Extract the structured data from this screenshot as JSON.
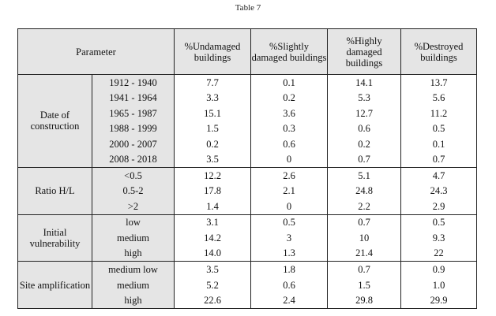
{
  "caption": "Table 7",
  "header": {
    "parameter": "Parameter",
    "columns": [
      "%Undamaged buildings",
      "%Slightly damaged buildings",
      "%Highly damaged buildings",
      "%Destroyed buildings"
    ]
  },
  "groups": [
    {
      "label": "Date of construction",
      "rows": [
        {
          "sub": "1912 - 1940",
          "v": [
            "7.7",
            "0.1",
            "14.1",
            "13.7"
          ]
        },
        {
          "sub": "1941 - 1964",
          "v": [
            "3.3",
            "0.2",
            "5.3",
            "5.6"
          ]
        },
        {
          "sub": "1965 - 1987",
          "v": [
            "15.1",
            "3.6",
            "12.7",
            "11.2"
          ]
        },
        {
          "sub": "1988 - 1999",
          "v": [
            "1.5",
            "0.3",
            "0.6",
            "0.5"
          ]
        },
        {
          "sub": "2000 - 2007",
          "v": [
            "0.2",
            "0.6",
            "0.2",
            "0.1"
          ]
        },
        {
          "sub": "2008 - 2018",
          "v": [
            "3.5",
            "0",
            "0.7",
            "0.7"
          ]
        }
      ]
    },
    {
      "label": "Ratio H/L",
      "rows": [
        {
          "sub": "<0.5",
          "v": [
            "12.2",
            "2.6",
            "5.1",
            "4.7"
          ]
        },
        {
          "sub": "0.5-2",
          "v": [
            "17.8",
            "2.1",
            "24.8",
            "24.3"
          ]
        },
        {
          "sub": ">2",
          "v": [
            "1.4",
            "0",
            "2.2",
            "2.9"
          ]
        }
      ]
    },
    {
      "label": "Initial vulnerability",
      "rows": [
        {
          "sub": "low",
          "v": [
            "3.1",
            "0.5",
            "0.7",
            "0.5"
          ]
        },
        {
          "sub": "medium",
          "v": [
            "14.2",
            "3",
            "10",
            "9.3"
          ]
        },
        {
          "sub": "high",
          "v": [
            "14.0",
            "1.3",
            "21.4",
            "22"
          ]
        }
      ]
    },
    {
      "label": "Site amplification",
      "rows": [
        {
          "sub": "medium low",
          "v": [
            "3.5",
            "1.8",
            "0.7",
            "0.9"
          ]
        },
        {
          "sub": "medium",
          "v": [
            "5.2",
            "0.6",
            "1.5",
            "1.0"
          ]
        },
        {
          "sub": "high",
          "v": [
            "22.6",
            "2.4",
            "29.8",
            "29.9"
          ]
        }
      ]
    }
  ]
}
